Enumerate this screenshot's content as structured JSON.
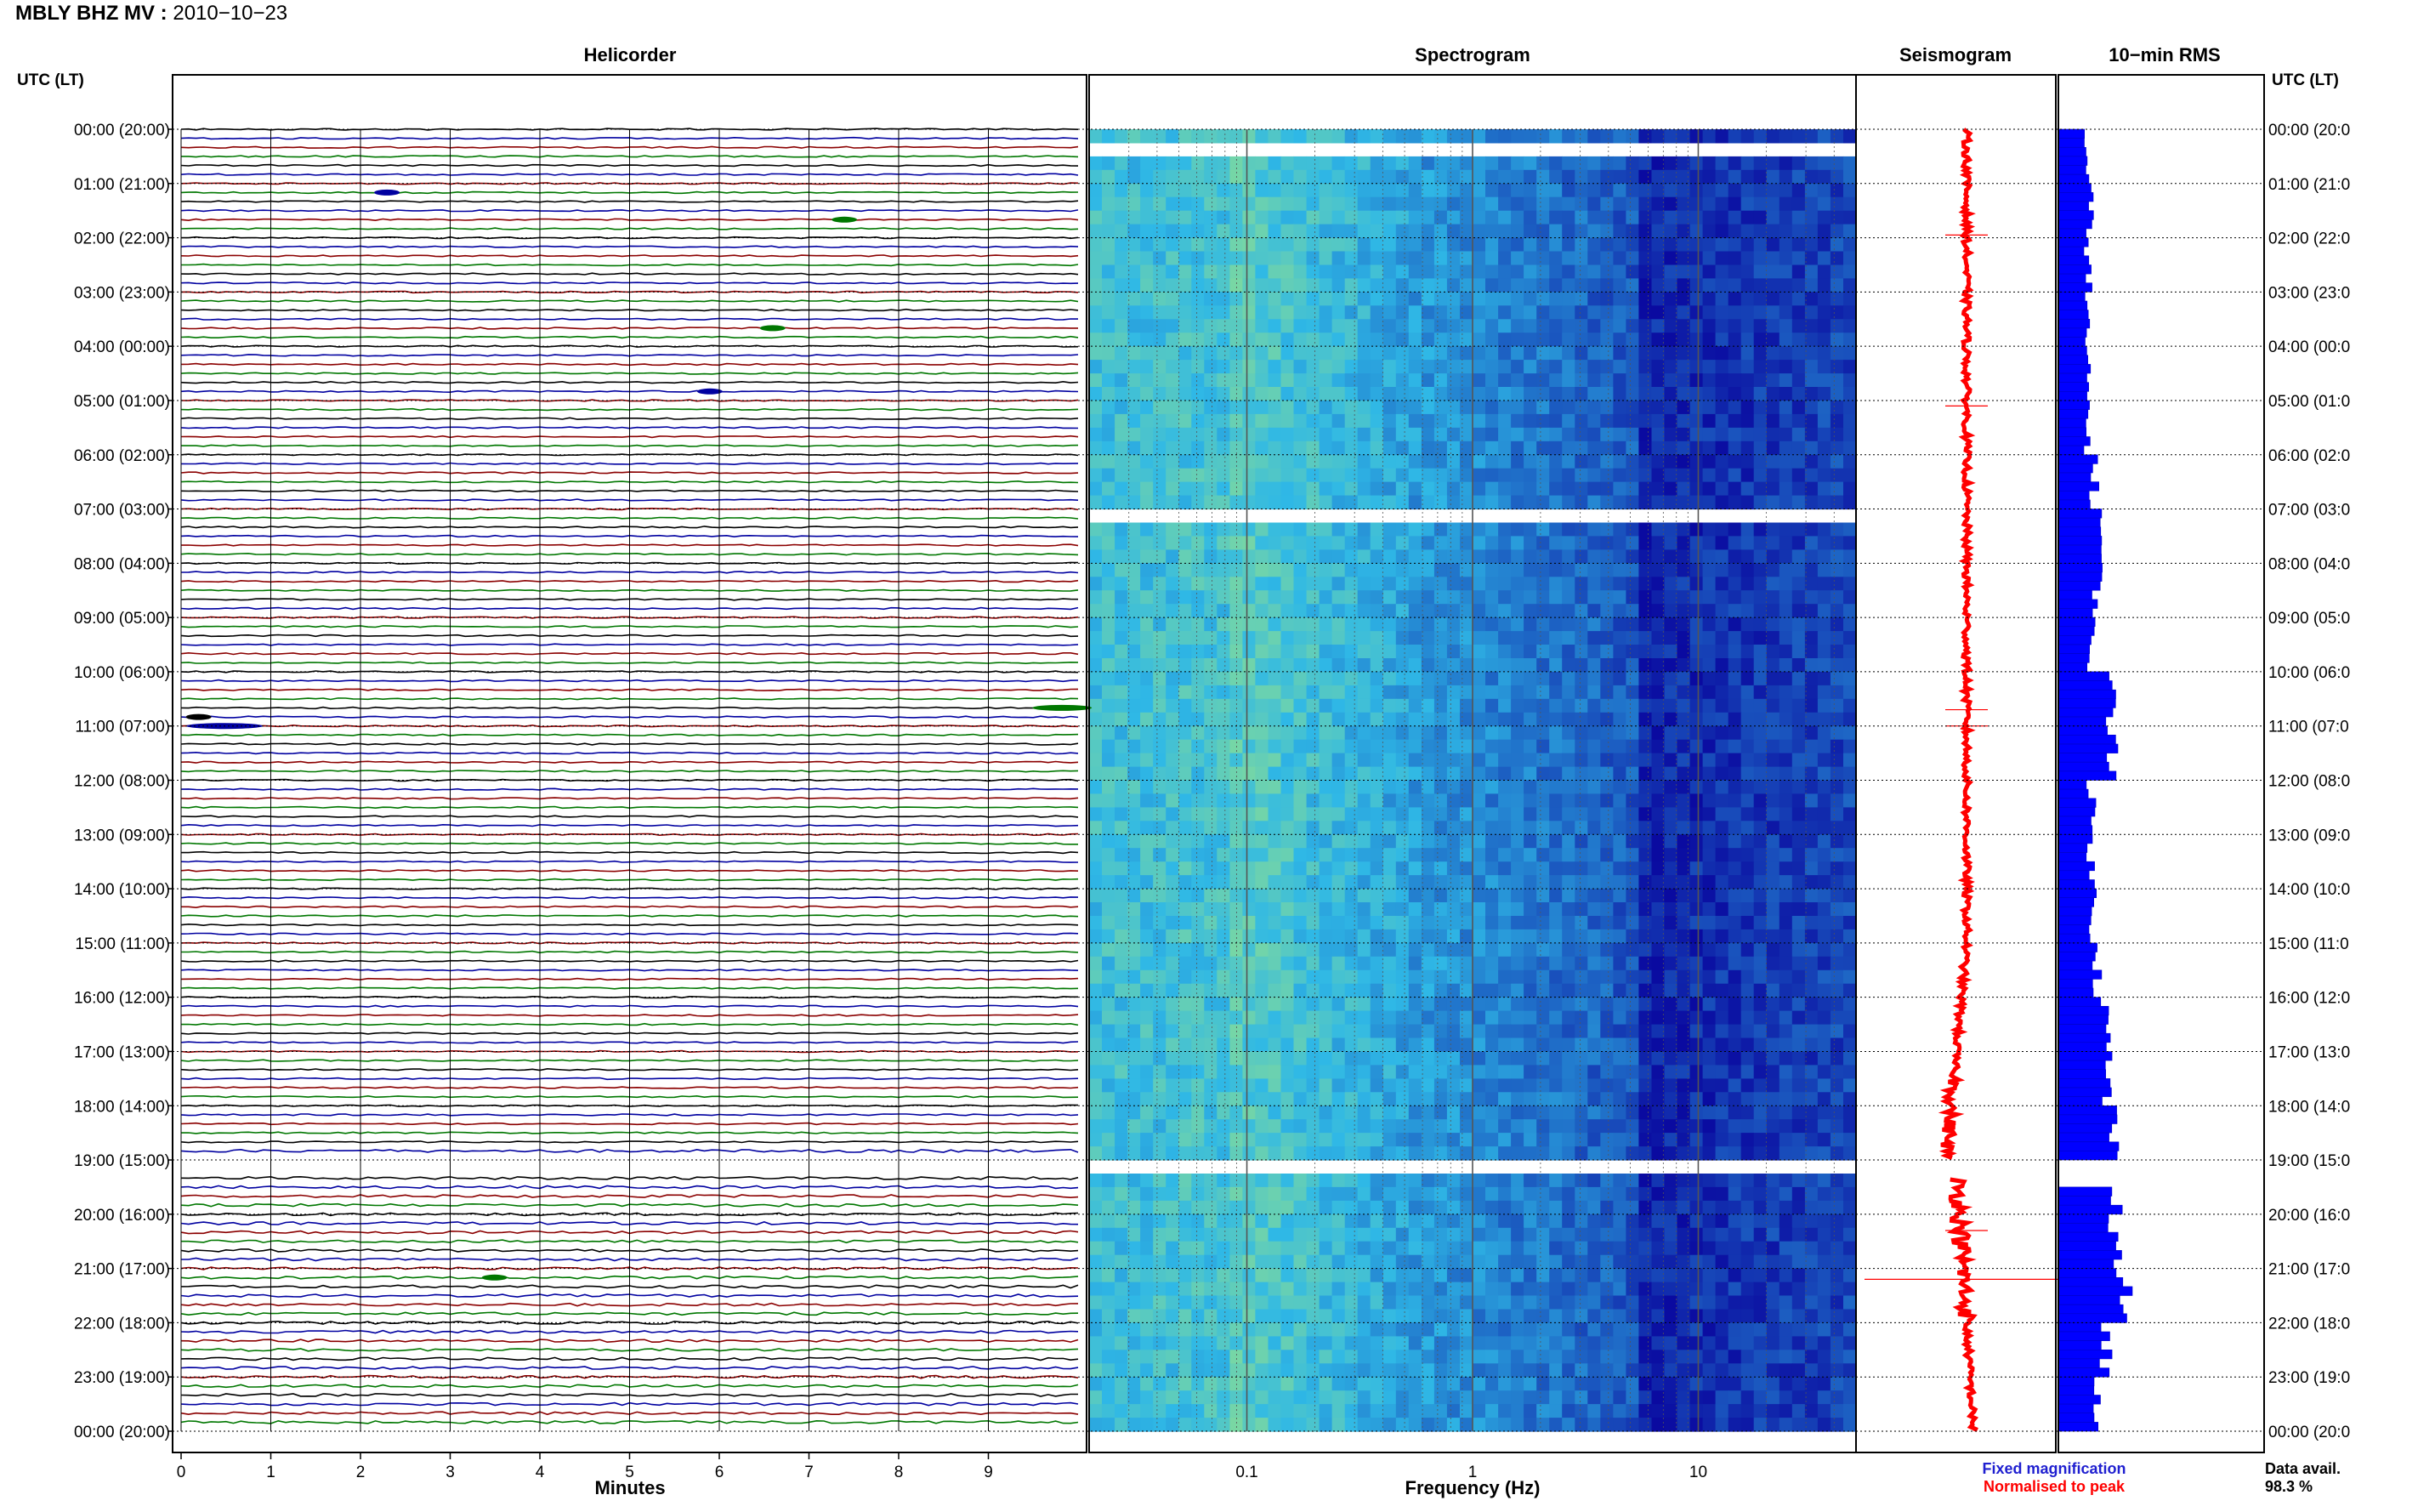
{
  "header": {
    "station": "MBLY BHZ MV",
    "separator": " : ",
    "date": "2010−10−23"
  },
  "panels": {
    "helicorder_title": "Helicorder",
    "spectrogram_title": "Spectrogram",
    "seismogram_title": "Seismogram",
    "rms_title": "10−min RMS"
  },
  "axes": {
    "left_header": "UTC (LT)",
    "right_header": "UTC (LT)",
    "minutes_label": "Minutes",
    "frequency_label": "Frequency (Hz)",
    "minute_ticks": [
      "0",
      "1",
      "2",
      "3",
      "4",
      "5",
      "6",
      "7",
      "8",
      "9"
    ],
    "frequency_ticks": [
      "0.1",
      "1",
      "10"
    ],
    "time_labels_left": [
      "00:00 (20:00)",
      "01:00 (21:00)",
      "02:00 (22:00)",
      "03:00 (23:00)",
      "04:00 (00:00)",
      "05:00 (01:00)",
      "06:00 (02:00)",
      "07:00 (03:00)",
      "08:00 (04:00)",
      "09:00 (05:00)",
      "10:00 (06:00)",
      "11:00 (07:00)",
      "12:00 (08:00)",
      "13:00 (09:00)",
      "14:00 (10:00)",
      "15:00 (11:00)",
      "16:00 (12:00)",
      "17:00 (13:00)",
      "18:00 (14:00)",
      "19:00 (15:00)",
      "20:00 (16:00)",
      "21:00 (17:00)",
      "22:00 (18:00)",
      "23:00 (19:00)",
      "00:00 (20:00)"
    ],
    "time_labels_right": [
      "00:00 (20:0",
      "01:00 (21:0",
      "02:00 (22:0",
      "03:00 (23:0",
      "04:00 (00:0",
      "05:00 (01:0",
      "06:00 (02:0",
      "07:00 (03:0",
      "08:00 (04:0",
      "09:00 (05:0",
      "10:00 (06:0",
      "11:00 (07:0",
      "12:00 (08:0",
      "13:00 (09:0",
      "14:00 (10:0",
      "15:00 (11:0",
      "16:00 (12:0",
      "17:00 (13:0",
      "18:00 (14:0",
      "19:00 (15:0",
      "20:00 (16:0",
      "21:00 (17:0",
      "22:00 (18:0",
      "23:00 (19:0",
      "00:00 (20:0"
    ]
  },
  "legend": {
    "fixed": "Fixed magnification",
    "normalised": "Normalised to peak",
    "fixed_color": "#1f1fd0",
    "normalised_color": "#ff0000",
    "avail_label": "Data avail.",
    "avail_value": "98.3 %"
  },
  "colors": {
    "trace_cycle": [
      "#000000",
      "#0000a0",
      "#8b0000",
      "#007700"
    ],
    "rms_bar": "#0000ff",
    "seismogram": "#ff0000",
    "spec_low": "#0a0aa0",
    "spec_mid": "#2fb8e6",
    "spec_high": "#b8f26a"
  },
  "chart_data": [
    {
      "type": "line",
      "panel": "Helicorder",
      "xlabel": "Minutes",
      "xlim": [
        0,
        10
      ],
      "rows_per_hour": 6,
      "hours": 24,
      "gaps": [
        {
          "row_start": 114,
          "row_end": 115
        }
      ],
      "events": [
        {
          "row": 7,
          "minute": 2.2,
          "color": "#0000a0"
        },
        {
          "row": 10,
          "minute": 7.3,
          "color": "#007700"
        },
        {
          "row": 22,
          "minute": 6.5,
          "color": "#007700"
        },
        {
          "row": 29,
          "minute": 5.8,
          "color": "#0000a0"
        },
        {
          "row": 64,
          "minute": 9.6,
          "color": "#007700"
        },
        {
          "row": 65,
          "minute": 0.1,
          "color": "#000000"
        },
        {
          "row": 66,
          "minute": 0.2,
          "color": "#0000a0"
        },
        {
          "row": 127,
          "minute": 3.4,
          "color": "#007700"
        }
      ]
    },
    {
      "type": "heatmap",
      "panel": "Spectrogram",
      "xlabel": "Frequency (Hz)",
      "x_scale": "log",
      "xlim": [
        0.02,
        50
      ],
      "ylim_hours": [
        0,
        24
      ],
      "gaps_hours": [
        [
          0.3,
          0.45
        ],
        [
          7.05,
          7.15
        ],
        [
          19.0,
          19.35
        ]
      ]
    },
    {
      "type": "line",
      "panel": "Seismogram",
      "series": [
        {
          "name": "Normalised to peak"
        }
      ],
      "spikes_hours": [
        1.95,
        5.1,
        10.7,
        11.0,
        20.3,
        21.2
      ]
    },
    {
      "type": "bar",
      "panel": "10−min RMS",
      "orientation": "horizontal",
      "hourly_rms": [
        0.3,
        0.33,
        0.32,
        0.3,
        0.3,
        0.32,
        0.38,
        0.45,
        0.42,
        0.35,
        0.55,
        0.6,
        0.35,
        0.35,
        0.38,
        0.42,
        0.5,
        0.52,
        0.58,
        0.65,
        0.62,
        0.7,
        0.5,
        0.4
      ],
      "gap_hours": [
        19.0,
        19.35
      ]
    }
  ]
}
